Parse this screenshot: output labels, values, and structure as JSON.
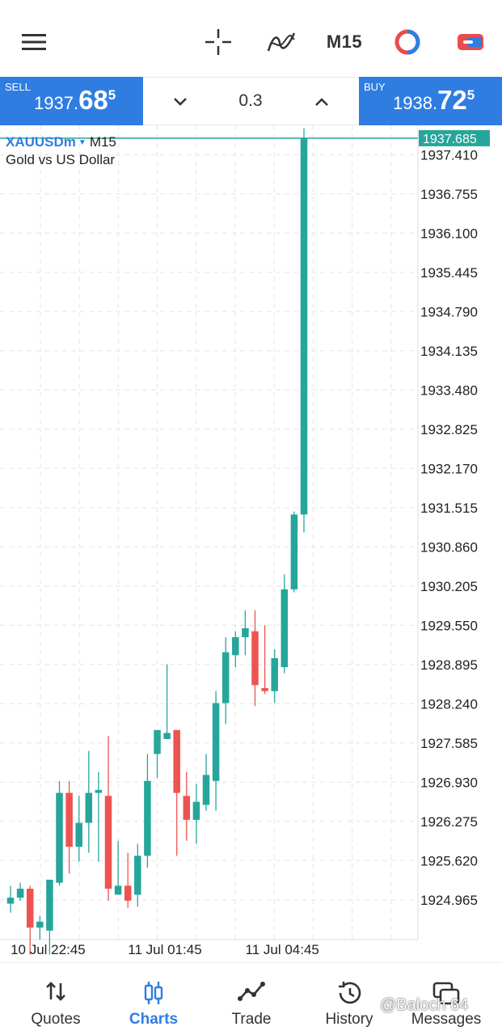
{
  "toolbar": {
    "timeframe": "M15",
    "icons": [
      "menu-icon",
      "crosshair-icon",
      "indicators-icon",
      "timeframe",
      "objects-icon",
      "one-click-trading-icon"
    ]
  },
  "trade_panel": {
    "sell": {
      "label": "SELL",
      "price_main": "1937.",
      "price_big": "68",
      "price_sup": "5"
    },
    "buy": {
      "label": "BUY",
      "price_main": "1938.",
      "price_big": "72",
      "price_sup": "5"
    },
    "volume": "0.3"
  },
  "chart_header": {
    "symbol": "XAUUSDm",
    "timeframe": "M15",
    "description": "Gold vs US Dollar"
  },
  "colors": {
    "accent": "#2f7de1",
    "bull": "#26a69a",
    "bear": "#ef5350",
    "grid": "#e6e6e6"
  },
  "chart_data": {
    "type": "candlestick",
    "symbol": "XAUUSDm",
    "timeframe": "M15",
    "current_bid": 1937.685,
    "price_levels": [
      "1937.410",
      "1936.755",
      "1936.100",
      "1935.445",
      "1934.790",
      "1934.135",
      "1933.480",
      "1932.825",
      "1932.170",
      "1931.515",
      "1930.860",
      "1930.205",
      "1929.550",
      "1928.895",
      "1928.240",
      "1927.585",
      "1926.930",
      "1926.275",
      "1925.620",
      "1924.965"
    ],
    "price_range": [
      1924.3,
      1937.9
    ],
    "time_labels": [
      "10 Jul 22:45",
      "11 Jul 01:45",
      "11 Jul 04:45"
    ],
    "time_label_indices": [
      1,
      13,
      25
    ],
    "current_price_label": "1937.685",
    "candles": [
      {
        "o": 1924.9,
        "h": 1925.2,
        "l": 1924.75,
        "c": 1925.0
      },
      {
        "o": 1925.0,
        "h": 1925.25,
        "l": 1924.95,
        "c": 1925.15
      },
      {
        "o": 1925.15,
        "h": 1925.2,
        "l": 1924.05,
        "c": 1924.5
      },
      {
        "o": 1924.5,
        "h": 1924.7,
        "l": 1924.3,
        "c": 1924.6
      },
      {
        "o": 1924.45,
        "h": 1925.3,
        "l": 1924.05,
        "c": 1925.3
      },
      {
        "o": 1925.25,
        "h": 1926.95,
        "l": 1925.2,
        "c": 1926.75
      },
      {
        "o": 1926.75,
        "h": 1926.95,
        "l": 1925.4,
        "c": 1925.85
      },
      {
        "o": 1925.85,
        "h": 1926.7,
        "l": 1925.6,
        "c": 1926.25
      },
      {
        "o": 1926.25,
        "h": 1927.45,
        "l": 1925.75,
        "c": 1926.75
      },
      {
        "o": 1926.75,
        "h": 1927.1,
        "l": 1925.6,
        "c": 1926.8
      },
      {
        "o": 1926.7,
        "h": 1927.7,
        "l": 1924.95,
        "c": 1925.15
      },
      {
        "o": 1925.05,
        "h": 1925.95,
        "l": 1925.05,
        "c": 1925.2
      },
      {
        "o": 1925.2,
        "h": 1925.75,
        "l": 1924.83,
        "c": 1924.95
      },
      {
        "o": 1925.05,
        "h": 1925.9,
        "l": 1924.85,
        "c": 1925.7
      },
      {
        "o": 1925.7,
        "h": 1927.4,
        "l": 1925.5,
        "c": 1926.95
      },
      {
        "o": 1927.4,
        "h": 1927.8,
        "l": 1927.0,
        "c": 1927.8
      },
      {
        "o": 1927.65,
        "h": 1928.9,
        "l": 1927.65,
        "c": 1927.75
      },
      {
        "o": 1927.8,
        "h": 1927.8,
        "l": 1925.7,
        "c": 1926.75
      },
      {
        "o": 1926.7,
        "h": 1927.1,
        "l": 1925.95,
        "c": 1926.3
      },
      {
        "o": 1926.3,
        "h": 1926.9,
        "l": 1925.9,
        "c": 1926.6
      },
      {
        "o": 1926.55,
        "h": 1927.4,
        "l": 1926.45,
        "c": 1927.05
      },
      {
        "o": 1926.95,
        "h": 1928.45,
        "l": 1926.45,
        "c": 1928.25
      },
      {
        "o": 1928.25,
        "h": 1929.35,
        "l": 1927.9,
        "c": 1929.1
      },
      {
        "o": 1929.05,
        "h": 1929.45,
        "l": 1928.85,
        "c": 1929.35
      },
      {
        "o": 1929.35,
        "h": 1929.8,
        "l": 1929.05,
        "c": 1929.5
      },
      {
        "o": 1929.45,
        "h": 1929.8,
        "l": 1928.2,
        "c": 1928.55
      },
      {
        "o": 1928.5,
        "h": 1929.55,
        "l": 1928.4,
        "c": 1928.45
      },
      {
        "o": 1928.45,
        "h": 1929.15,
        "l": 1928.25,
        "c": 1929.0
      },
      {
        "o": 1928.85,
        "h": 1930.4,
        "l": 1928.75,
        "c": 1930.15
      },
      {
        "o": 1930.15,
        "h": 1931.45,
        "l": 1930.1,
        "c": 1931.4
      },
      {
        "o": 1931.4,
        "h": 1937.85,
        "l": 1931.1,
        "c": 1937.685
      }
    ]
  },
  "bottom_nav": [
    {
      "label": "Quotes",
      "icon": "quotes-icon",
      "active": false
    },
    {
      "label": "Charts",
      "icon": "charts-icon",
      "active": true
    },
    {
      "label": "Trade",
      "icon": "trade-icon",
      "active": false
    },
    {
      "label": "History",
      "icon": "history-icon",
      "active": false
    },
    {
      "label": "Messages",
      "icon": "messages-icon",
      "active": false
    }
  ],
  "watermark": "@Baloch 64"
}
